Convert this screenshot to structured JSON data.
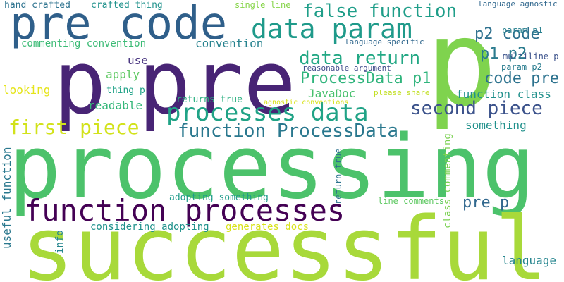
{
  "words": [
    {
      "text": "processing",
      "color": "#4cc26b"
    },
    {
      "text": "successful",
      "color": "#a8d93a"
    },
    {
      "text": "p",
      "color": "#7fd34e"
    },
    {
      "text": "pre",
      "color": "#482475"
    },
    {
      "text": "p",
      "color": "#482475"
    },
    {
      "text": "pre code",
      "color": "#2f5f8a"
    },
    {
      "text": "function processes",
      "color": "#440154"
    },
    {
      "text": "processes data",
      "color": "#20a386"
    },
    {
      "text": "data param",
      "color": "#1f9a8a"
    },
    {
      "text": "first piece",
      "color": "#d2e21b"
    },
    {
      "text": "function ProcessData",
      "color": "#2a788e"
    },
    {
      "text": "false function",
      "color": "#1f9e89"
    },
    {
      "text": "data return",
      "color": "#22a884"
    },
    {
      "text": "second piece",
      "color": "#3b528b"
    },
    {
      "text": "ProcessData p1",
      "color": "#2fb47c"
    },
    {
      "text": "p2 code",
      "color": "#2d708e"
    },
    {
      "text": "p1 p2",
      "color": "#2a7b8e"
    },
    {
      "text": "code pre",
      "color": "#2c728e"
    },
    {
      "text": "pre p",
      "color": "#31688e"
    },
    {
      "text": "function class",
      "color": "#21918c"
    },
    {
      "text": "something",
      "color": "#21918c"
    },
    {
      "text": "convention",
      "color": "#26828e"
    },
    {
      "text": "commenting convention",
      "color": "#3bbb75"
    },
    {
      "text": "use",
      "color": "#46327e"
    },
    {
      "text": "apply",
      "color": "#5ec962"
    },
    {
      "text": "looking",
      "color": "#e5e419"
    },
    {
      "text": "readable",
      "color": "#35b779"
    },
    {
      "text": "JavaDoc",
      "color": "#48c16e"
    },
    {
      "text": "returns true",
      "color": "#29af7f"
    },
    {
      "text": "thing p",
      "color": "#1fa287"
    },
    {
      "text": "please share",
      "color": "#c2df23"
    },
    {
      "text": "agnostic conventions",
      "color": "#d8e219"
    },
    {
      "text": "hand crafted",
      "color": "#2c728e"
    },
    {
      "text": "crafted thing",
      "color": "#20928c"
    },
    {
      "text": "single line",
      "color": "#86d549"
    },
    {
      "text": "language agnostic",
      "color": "#31688e"
    },
    {
      "text": "language specific",
      "color": "#31688e"
    },
    {
      "text": "param p1",
      "color": "#277f8e"
    },
    {
      "text": "multiline p",
      "color": "#3b528b"
    },
    {
      "text": "param p2",
      "color": "#287c8e"
    },
    {
      "text": "reasonable argument",
      "color": "#3e4a89"
    },
    {
      "text": "adopting something",
      "color": "#1e9b8a"
    },
    {
      "text": "considering adopting",
      "color": "#20928c"
    },
    {
      "text": "generates docs",
      "color": "#d8e219"
    },
    {
      "text": "line comments",
      "color": "#5ec962"
    },
    {
      "text": "language",
      "color": "#25858e"
    },
    {
      "text": "useful function",
      "color": "#2a788e"
    },
    {
      "text": "info",
      "color": "#24868e"
    },
    {
      "text": "class commenting",
      "color": "#7ad151"
    },
    {
      "text": "return true",
      "color": "#2c728e"
    }
  ]
}
